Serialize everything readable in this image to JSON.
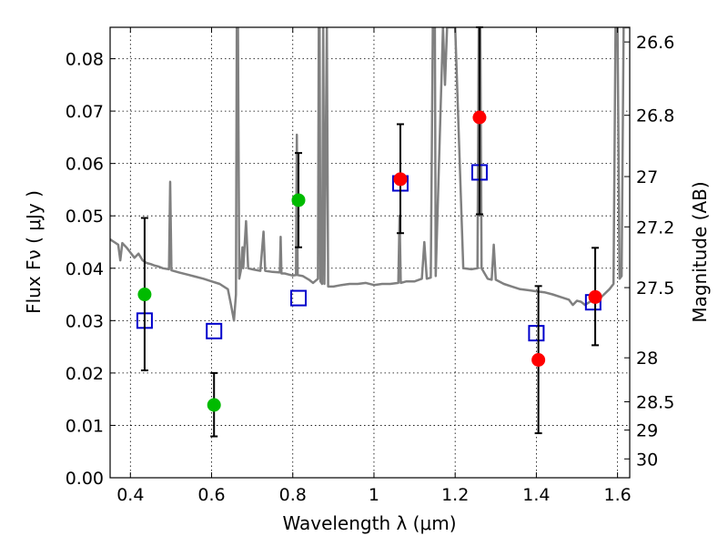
{
  "chart_data": {
    "type": "scatter",
    "title": "",
    "xlabel": "Wavelength  λ (μm)",
    "ylabel": "Flux  Fν  ( μJy )",
    "y2label": "Magnitude (AB)",
    "xlim": [
      0.35,
      1.63
    ],
    "ylim": [
      0.0,
      0.086
    ],
    "grid": true,
    "colors": {
      "spectrum": "#808080",
      "model": "#0000cc",
      "green": "#00bb00",
      "red": "#ff0000",
      "errorbar": "#000000"
    },
    "x_ticks": [
      0.4,
      0.6,
      0.8,
      1.0,
      1.2,
      1.4,
      1.6
    ],
    "x_tick_labels": [
      "0.4",
      "0.6",
      "0.8",
      "1",
      "1.2",
      "1.4",
      "1.6"
    ],
    "y_ticks": [
      0.0,
      0.01,
      0.02,
      0.03,
      0.04,
      0.05,
      0.06,
      0.07,
      0.08
    ],
    "y_tick_labels": [
      "0.00",
      "0.01",
      "0.02",
      "0.03",
      "0.04",
      "0.05",
      "0.06",
      "0.07",
      "0.08"
    ],
    "y2_ticks": [
      {
        "label": "26.6",
        "flux": 0.0832
      },
      {
        "label": "26.8",
        "flux": 0.0692
      },
      {
        "label": "27",
        "flux": 0.0575
      },
      {
        "label": "27.2",
        "flux": 0.0479
      },
      {
        "label": "27.5",
        "flux": 0.0363
      },
      {
        "label": "28",
        "flux": 0.0229
      },
      {
        "label": "28.5",
        "flux": 0.0145
      },
      {
        "label": "29",
        "flux": 0.0091
      },
      {
        "label": "30",
        "flux": 0.0036
      }
    ],
    "series": [
      {
        "marker": "square-open",
        "color": "#0000cc",
        "points": [
          {
            "x": 0.435,
            "y": 0.03
          },
          {
            "x": 0.606,
            "y": 0.028
          },
          {
            "x": 0.814,
            "y": 0.0343
          },
          {
            "x": 1.065,
            "y": 0.0562
          },
          {
            "x": 1.26,
            "y": 0.0583
          },
          {
            "x": 1.4,
            "y": 0.0276
          },
          {
            "x": 1.54,
            "y": 0.0335
          }
        ]
      },
      {
        "marker": "circle",
        "color": "#00bb00",
        "points": [
          {
            "x": 0.435,
            "y": 0.035,
            "err_low": 0.0205,
            "err_high": 0.0496
          },
          {
            "x": 0.606,
            "y": 0.0139,
            "err_low": 0.0079,
            "err_high": 0.02
          },
          {
            "x": 0.814,
            "y": 0.053,
            "err_low": 0.044,
            "err_high": 0.062
          }
        ]
      },
      {
        "marker": "circle",
        "color": "#ff0000",
        "points": [
          {
            "x": 1.065,
            "y": 0.057,
            "err_low": 0.0467,
            "err_high": 0.0675
          },
          {
            "x": 1.26,
            "y": 0.0688,
            "err_low": 0.0503,
            "err_high": 0.086
          },
          {
            "x": 1.405,
            "y": 0.0225,
            "err_low": 0.0085,
            "err_high": 0.0366
          },
          {
            "x": 1.545,
            "y": 0.0345,
            "err_low": 0.0253,
            "err_high": 0.0439
          }
        ]
      }
    ],
    "spectrum": [
      [
        0.35,
        0.0455
      ],
      [
        0.36,
        0.045
      ],
      [
        0.37,
        0.0445
      ],
      [
        0.375,
        0.0415
      ],
      [
        0.38,
        0.0448
      ],
      [
        0.39,
        0.044
      ],
      [
        0.4,
        0.043
      ],
      [
        0.41,
        0.042
      ],
      [
        0.42,
        0.0428
      ],
      [
        0.43,
        0.0415
      ],
      [
        0.44,
        0.041
      ],
      [
        0.45,
        0.0408
      ],
      [
        0.46,
        0.0405
      ],
      [
        0.47,
        0.0403
      ],
      [
        0.48,
        0.04
      ],
      [
        0.495,
        0.0398
      ],
      [
        0.498,
        0.0565
      ],
      [
        0.501,
        0.0396
      ],
      [
        0.52,
        0.0392
      ],
      [
        0.54,
        0.0388
      ],
      [
        0.56,
        0.0384
      ],
      [
        0.58,
        0.038
      ],
      [
        0.6,
        0.0375
      ],
      [
        0.62,
        0.037
      ],
      [
        0.64,
        0.036
      ],
      [
        0.648,
        0.033
      ],
      [
        0.655,
        0.03
      ],
      [
        0.66,
        0.035
      ],
      [
        0.662,
        0.086
      ],
      [
        0.665,
        0.086
      ],
      [
        0.668,
        0.038
      ],
      [
        0.672,
        0.0395
      ],
      [
        0.676,
        0.044
      ],
      [
        0.678,
        0.04
      ],
      [
        0.685,
        0.049
      ],
      [
        0.69,
        0.04
      ],
      [
        0.7,
        0.0398
      ],
      [
        0.72,
        0.0395
      ],
      [
        0.728,
        0.047
      ],
      [
        0.732,
        0.0395
      ],
      [
        0.75,
        0.0393
      ],
      [
        0.768,
        0.0392
      ],
      [
        0.77,
        0.046
      ],
      [
        0.772,
        0.039
      ],
      [
        0.78,
        0.039
      ],
      [
        0.79,
        0.0388
      ],
      [
        0.8,
        0.0386
      ],
      [
        0.808,
        0.0387
      ],
      [
        0.81,
        0.0655
      ],
      [
        0.812,
        0.0387
      ],
      [
        0.825,
        0.0385
      ],
      [
        0.84,
        0.0378
      ],
      [
        0.85,
        0.0372
      ],
      [
        0.862,
        0.038
      ],
      [
        0.864,
        0.086
      ],
      [
        0.866,
        0.086
      ],
      [
        0.868,
        0.0375
      ],
      [
        0.872,
        0.037
      ],
      [
        0.875,
        0.086
      ],
      [
        0.878,
        0.037
      ],
      [
        0.884,
        0.086
      ],
      [
        0.887,
        0.0365
      ],
      [
        0.9,
        0.0365
      ],
      [
        0.92,
        0.0368
      ],
      [
        0.94,
        0.037
      ],
      [
        0.96,
        0.037
      ],
      [
        0.98,
        0.0372
      ],
      [
        1.0,
        0.0368
      ],
      [
        1.02,
        0.037
      ],
      [
        1.04,
        0.037
      ],
      [
        1.06,
        0.0372
      ],
      [
        1.063,
        0.05
      ],
      [
        1.066,
        0.0372
      ],
      [
        1.08,
        0.0375
      ],
      [
        1.1,
        0.0375
      ],
      [
        1.118,
        0.038
      ],
      [
        1.124,
        0.045
      ],
      [
        1.13,
        0.038
      ],
      [
        1.14,
        0.0382
      ],
      [
        1.145,
        0.086
      ],
      [
        1.15,
        0.086
      ],
      [
        1.152,
        0.0385
      ],
      [
        1.17,
        0.086
      ],
      [
        1.175,
        0.075
      ],
      [
        1.18,
        0.086
      ],
      [
        1.2,
        0.086
      ],
      [
        1.22,
        0.04
      ],
      [
        1.24,
        0.0398
      ],
      [
        1.255,
        0.04
      ],
      [
        1.258,
        0.086
      ],
      [
        1.262,
        0.086
      ],
      [
        1.265,
        0.04
      ],
      [
        1.28,
        0.038
      ],
      [
        1.29,
        0.0378
      ],
      [
        1.295,
        0.0445
      ],
      [
        1.3,
        0.0378
      ],
      [
        1.32,
        0.037
      ],
      [
        1.34,
        0.0365
      ],
      [
        1.36,
        0.036
      ],
      [
        1.38,
        0.0358
      ],
      [
        1.4,
        0.0356
      ],
      [
        1.42,
        0.0354
      ],
      [
        1.44,
        0.035
      ],
      [
        1.46,
        0.0345
      ],
      [
        1.48,
        0.034
      ],
      [
        1.49,
        0.033
      ],
      [
        1.5,
        0.0338
      ],
      [
        1.51,
        0.0336
      ],
      [
        1.52,
        0.033
      ],
      [
        1.54,
        0.034
      ],
      [
        1.56,
        0.0345
      ],
      [
        1.58,
        0.036
      ],
      [
        1.59,
        0.037
      ],
      [
        1.595,
        0.086
      ],
      [
        1.6,
        0.086
      ],
      [
        1.605,
        0.038
      ],
      [
        1.61,
        0.0385
      ],
      [
        1.615,
        0.086
      ],
      [
        1.62,
        0.086
      ],
      [
        1.63,
        0.086
      ]
    ]
  }
}
